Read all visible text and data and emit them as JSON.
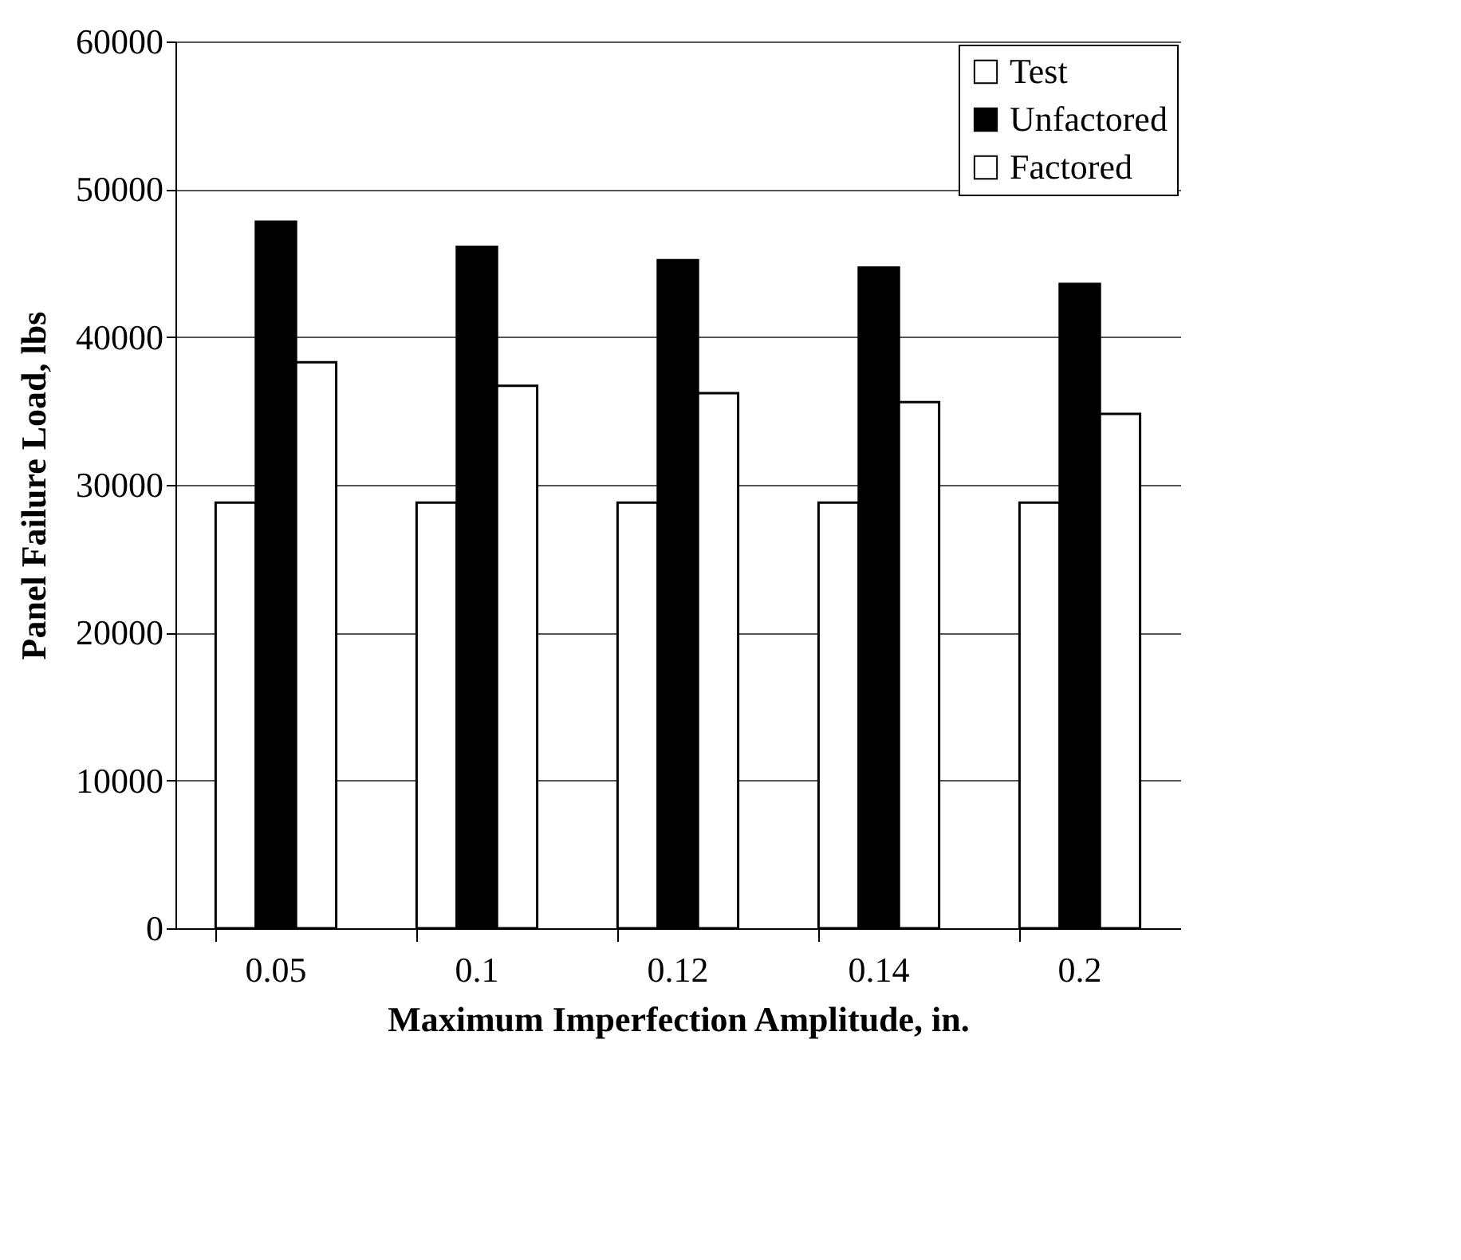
{
  "chart_data": {
    "type": "bar",
    "xlabel": "Maximum Imperfection Amplitude, in.",
    "ylabel": "Panel Failure Load, lbs",
    "categories": [
      "0.05",
      "0.1",
      "0.12",
      "0.14",
      "0.2"
    ],
    "series": [
      {
        "name": "Test",
        "color": "#ffffff",
        "values": [
          28800,
          28800,
          28800,
          28800,
          28800
        ]
      },
      {
        "name": "Unfactored",
        "color": "#000000",
        "values": [
          47800,
          46100,
          45200,
          44700,
          43600
        ]
      },
      {
        "name": "Factored",
        "color": "#ffffff",
        "values": [
          38300,
          36700,
          36200,
          35600,
          34800
        ]
      }
    ],
    "ylim": [
      0,
      60000
    ],
    "yticks": [
      0,
      10000,
      20000,
      30000,
      40000,
      50000,
      60000
    ],
    "grid": "y",
    "legend": "top right"
  }
}
